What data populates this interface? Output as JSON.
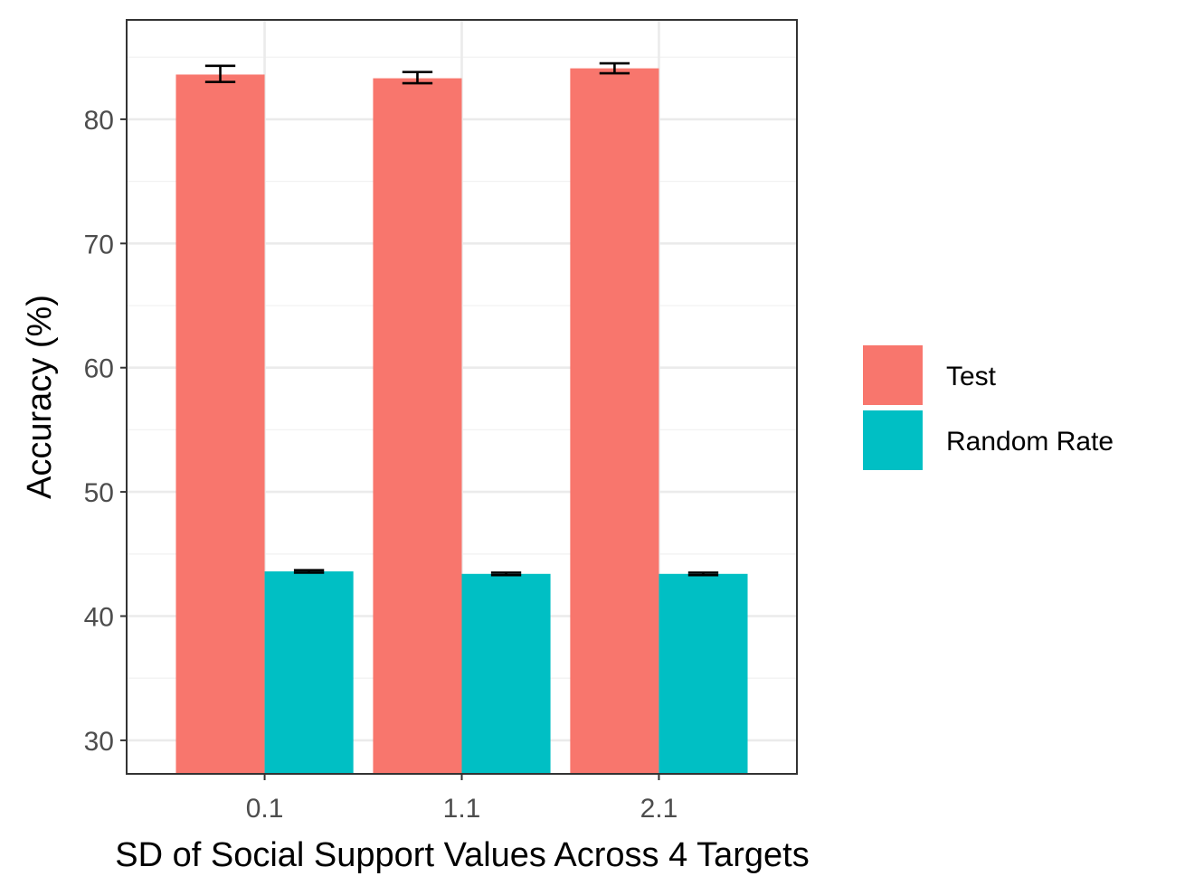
{
  "chart_data": {
    "type": "bar",
    "title": "",
    "xlabel": "SD of Social Support Values Across 4 Targets",
    "ylabel": "Accuracy (%)",
    "categories": [
      "0.1",
      "1.1",
      "2.1"
    ],
    "ylim": [
      27.3,
      88.0
    ],
    "yticks": [
      30,
      40,
      50,
      60,
      70,
      80
    ],
    "yticklabels": [
      "30",
      "40",
      "50",
      "60",
      "70",
      "80"
    ],
    "grid": true,
    "legend_position": "right",
    "series": [
      {
        "name": "Test",
        "color": "#F8766D",
        "values": [
          83.6,
          83.3,
          84.1
        ],
        "err_low": [
          83.0,
          82.9,
          83.7
        ],
        "err_high": [
          84.3,
          83.8,
          84.5
        ]
      },
      {
        "name": "Random Rate",
        "color": "#00BFC4",
        "values": [
          43.6,
          43.4,
          43.4
        ],
        "err_low": [
          43.5,
          43.3,
          43.3
        ],
        "err_high": [
          43.7,
          43.5,
          43.5
        ]
      }
    ]
  }
}
